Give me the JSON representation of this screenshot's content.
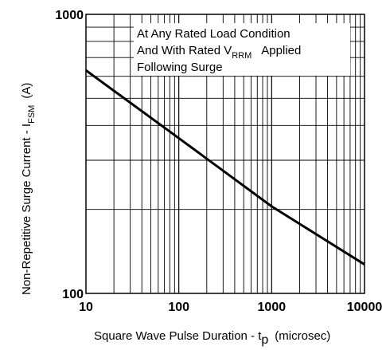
{
  "chart_data": {
    "type": "line",
    "x_scale": "log",
    "y_scale": "log",
    "xlim": [
      10,
      10000
    ],
    "ylim": [
      100,
      1000
    ],
    "grid": true,
    "x_ticks": [
      "10",
      "100",
      "1000",
      "10000"
    ],
    "y_ticks": [
      "100",
      "1000"
    ],
    "xlabel": {
      "text": "Square Wave Pulse Duration - t",
      "sub": "p",
      "suffix": "(microsec)"
    },
    "ylabel": {
      "text": "Non-Repetitive Surge Current - I",
      "sub": "FSM",
      "suffix": "(A)"
    },
    "annotation": {
      "line1": "At Any Rated Load Condition",
      "line2_prefix": "And With Rated V",
      "line2_sub": "RRM",
      "line2_suffix": "Applied",
      "line3": "Following Surge"
    },
    "series": [
      {
        "x": [
          10,
          100,
          1000,
          10000
        ],
        "y": [
          630,
          360,
          205,
          127
        ]
      }
    ],
    "line_color": "#000000",
    "grid_color": "#000000"
  }
}
